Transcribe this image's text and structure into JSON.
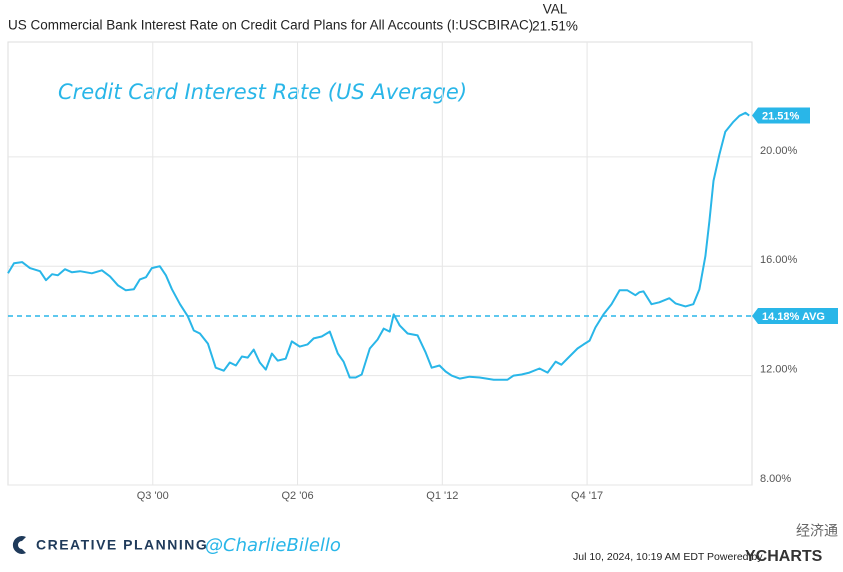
{
  "chart_data": {
    "type": "line",
    "title": "US Commercial Bank Interest Rate on Credit Card Plans for All Accounts (I:USCBIRAC)",
    "legend_header": "VAL",
    "annotation": "Credit Card Interest Rate (US Average)",
    "footer_brand": "CREATIVE PLANNING",
    "footer_handle": "@CharlieBilello",
    "footer_timestamp": "Jul 10, 2024, 10:19 AM EDT Powered by",
    "footer_logo": "YCHARTS",
    "watermark": "经济通",
    "end_label": {
      "value": 21.51,
      "label": "21.51%"
    },
    "average": {
      "value": 14.18,
      "label": "14.18% AVG"
    },
    "xlim": [
      1994.75,
      2024.3
    ],
    "xticks": [
      {
        "value": 2000.5,
        "label": "Q3 '00"
      },
      {
        "value": 2006.25,
        "label": "Q2 '06"
      },
      {
        "value": 2012.0,
        "label": "Q1 '12"
      },
      {
        "value": 2017.75,
        "label": "Q4 '17"
      }
    ],
    "ylim": [
      8,
      24.2
    ],
    "yticks": [
      {
        "value": 8,
        "label": "8.00%"
      },
      {
        "value": 12,
        "label": "12.00%"
      },
      {
        "value": 16,
        "label": "16.00%"
      },
      {
        "value": 20,
        "label": "20.00%"
      }
    ],
    "grid": true,
    "x": [
      1994.75,
      1994.99,
      1995.31,
      1995.62,
      1996.02,
      1996.26,
      1996.5,
      1996.73,
      1997.01,
      1997.29,
      1997.61,
      1998.08,
      1998.48,
      1998.8,
      1999.12,
      1999.43,
      1999.75,
      1999.99,
      2000.23,
      2000.46,
      2000.78,
      2001.02,
      2001.26,
      2001.58,
      2001.89,
      2002.13,
      2002.37,
      2002.69,
      2003.0,
      2003.32,
      2003.56,
      2003.8,
      2004.04,
      2004.27,
      2004.51,
      2004.75,
      2004.99,
      2005.23,
      2005.46,
      2005.78,
      2006.02,
      2006.34,
      2006.65,
      2006.89,
      2007.21,
      2007.53,
      2007.85,
      2008.08,
      2008.32,
      2008.56,
      2008.8,
      2009.12,
      2009.43,
      2009.67,
      2009.91,
      2010.07,
      2010.31,
      2010.62,
      2011.02,
      2011.34,
      2011.58,
      2011.89,
      2012.13,
      2012.37,
      2012.69,
      2013.08,
      2013.48,
      2014.04,
      2014.59,
      2014.83,
      2015.15,
      2015.46,
      2015.86,
      2016.18,
      2016.5,
      2016.73,
      2017.05,
      2017.37,
      2017.61,
      2017.85,
      2018.08,
      2018.4,
      2018.72,
      2019.04,
      2019.35,
      2019.67,
      2019.83,
      2019.99,
      2020.31,
      2020.62,
      2021.02,
      2021.26,
      2021.66,
      2021.97,
      2022.21,
      2022.45,
      2022.61,
      2022.77,
      2023.0,
      2023.24,
      2023.56,
      2023.8,
      2024.04,
      2024.19
    ],
    "series": [
      {
        "name": "US Commercial Bank Interest Rate on Credit Card Plans for All Accounts",
        "color": "#29b6e8",
        "values": [
          15.74,
          16.11,
          16.15,
          15.93,
          15.82,
          15.49,
          15.71,
          15.67,
          15.89,
          15.78,
          15.82,
          15.74,
          15.85,
          15.63,
          15.3,
          15.12,
          15.16,
          15.52,
          15.6,
          15.93,
          16.0,
          15.67,
          15.16,
          14.61,
          14.17,
          13.65,
          13.54,
          13.17,
          12.29,
          12.18,
          12.48,
          12.37,
          12.7,
          12.66,
          12.95,
          12.48,
          12.22,
          12.81,
          12.55,
          12.62,
          13.25,
          13.06,
          13.14,
          13.36,
          13.43,
          13.61,
          12.81,
          12.51,
          11.93,
          11.93,
          12.04,
          12.99,
          13.32,
          13.72,
          13.61,
          14.24,
          13.83,
          13.54,
          13.47,
          12.84,
          12.29,
          12.37,
          12.15,
          12.0,
          11.89,
          11.96,
          11.93,
          11.85,
          11.85,
          12.0,
          12.04,
          12.11,
          12.26,
          12.11,
          12.51,
          12.4,
          12.7,
          12.99,
          13.14,
          13.28,
          13.76,
          14.24,
          14.61,
          15.12,
          15.12,
          14.94,
          15.05,
          15.08,
          14.61,
          14.68,
          14.83,
          14.64,
          14.53,
          14.61,
          15.16,
          16.37,
          17.65,
          19.12,
          20.07,
          20.92,
          21.28,
          21.5,
          21.61,
          21.51
        ]
      }
    ]
  }
}
